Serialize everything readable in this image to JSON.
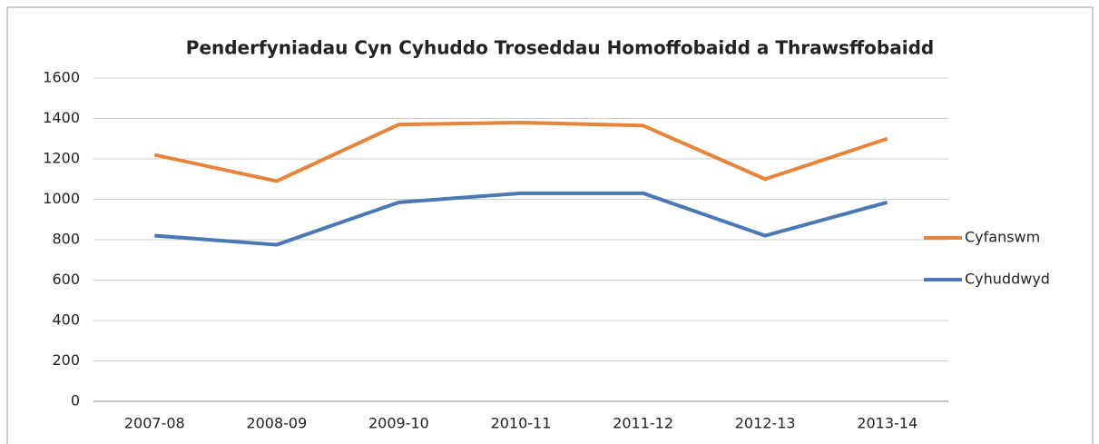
{
  "chart_data": {
    "type": "line",
    "title": "Penderfyniadau Cyn Cyhuddo Troseddau Homoffobaidd a Thrawsffobaidd",
    "categories": [
      "2007-08",
      "2008-09",
      "2009-10",
      "2010-11",
      "2011-12",
      "2012-13",
      "2013-14"
    ],
    "series": [
      {
        "name": "Cyfanswm",
        "color": "#e8843a",
        "values": [
          1220,
          1090,
          1370,
          1380,
          1365,
          1100,
          1300
        ]
      },
      {
        "name": "Cyhuddwyd",
        "color": "#4a78b4",
        "values": [
          820,
          775,
          985,
          1030,
          1030,
          820,
          985
        ]
      }
    ],
    "ylim": [
      0,
      1600
    ],
    "yticks": [
      0,
      200,
      400,
      600,
      800,
      1000,
      1200,
      1400,
      1600
    ],
    "grid": true,
    "legend": "right"
  }
}
